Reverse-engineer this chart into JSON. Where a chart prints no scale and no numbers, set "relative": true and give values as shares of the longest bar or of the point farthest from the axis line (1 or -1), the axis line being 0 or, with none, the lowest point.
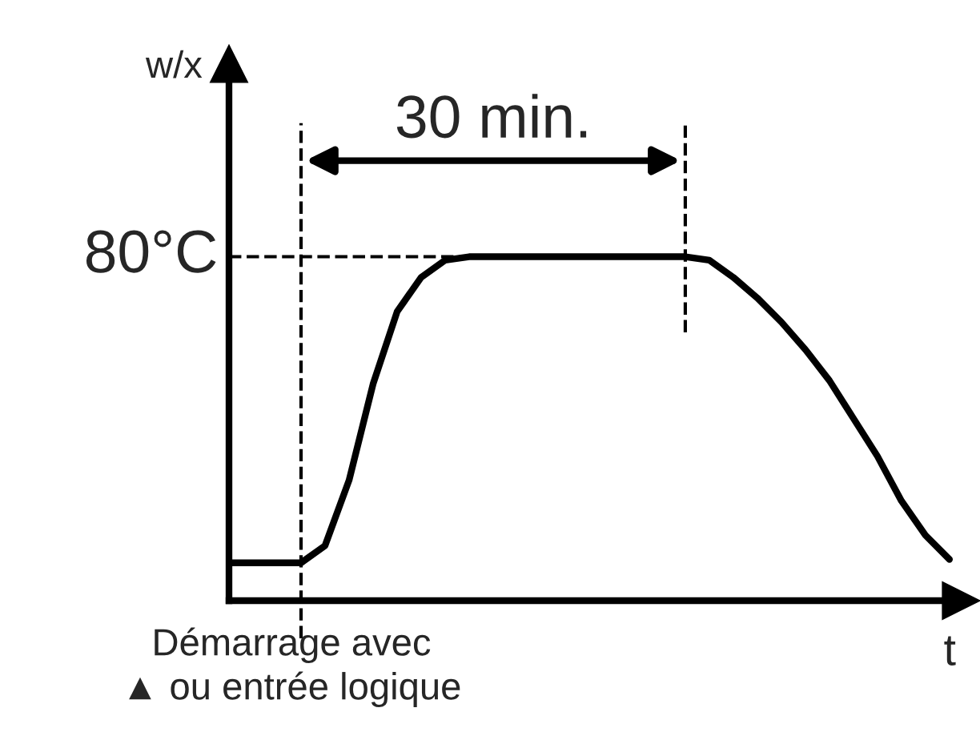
{
  "chart_data": {
    "type": "line",
    "relative": true,
    "xlabel": "t",
    "ylabel": "w/x",
    "categories": [
      null,
      null,
      null,
      null,
      null,
      null,
      null,
      null,
      null,
      null,
      null,
      null,
      null,
      null,
      null,
      null,
      null,
      null,
      null,
      null,
      null,
      null,
      null,
      null,
      null,
      null,
      null,
      null,
      null,
      null,
      null
    ],
    "series": [
      {
        "color": "#000000",
        "values": [
          0.11,
          0.11,
          0.11,
          0.11,
          0.16,
          0.35,
          0.63,
          0.84,
          0.94,
          0.99,
          1,
          1,
          1,
          1,
          1,
          1,
          1,
          1,
          1,
          1,
          0.99,
          0.94,
          0.88,
          0.81,
          0.73,
          0.64,
          0.53,
          0.42,
          0.29,
          0.19,
          0.12
        ]
      }
    ],
    "ref_lines": [
      {
        "axis": "y",
        "value": 1,
        "label": "80°C",
        "line_style": "dashed",
        "color": "#000000"
      }
    ],
    "annotations": [
      "30 min.",
      "Démarrage avec\n▲ ou entrée logique"
    ],
    "marker": "none",
    "line_style": "solid",
    "legend": false
  }
}
